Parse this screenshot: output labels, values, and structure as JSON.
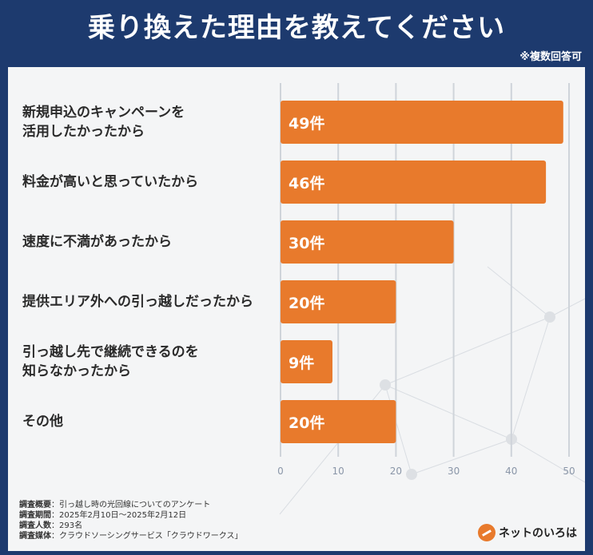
{
  "header": {
    "title": "乗り換えた理由を教えてください",
    "note": "※複数回答可"
  },
  "chart_data": {
    "type": "bar",
    "orientation": "horizontal",
    "categories": [
      "新規申込のキャンペーンを\n活用したかったから",
      "料金が高いと思っていたから",
      "速度に不満があったから",
      "提供エリア外への引っ越しだったから",
      "引っ越し先で継続できるのを\n知らなかったから",
      "その他"
    ],
    "values": [
      49,
      46,
      30,
      20,
      9,
      20
    ],
    "value_labels": [
      "49件",
      "46件",
      "30件",
      "20件",
      "9件",
      "20件"
    ],
    "xlim": [
      0,
      50
    ],
    "xticks": [
      "0",
      "10",
      "20",
      "30",
      "40",
      "50"
    ],
    "bar_color": "#e87a2c"
  },
  "footer": {
    "lines": [
      {
        "key": "調査概要",
        "value": "引っ越し時の光回線についてのアンケート"
      },
      {
        "key": "調査期間",
        "value": "2025年2月10日〜2025年2月12日"
      },
      {
        "key": "調査人数",
        "value": "293名"
      },
      {
        "key": "調査媒体",
        "value": "クラウドソーシングサービス「クラウドワークス」"
      }
    ]
  },
  "logo": {
    "text": "ネットのいろは"
  }
}
